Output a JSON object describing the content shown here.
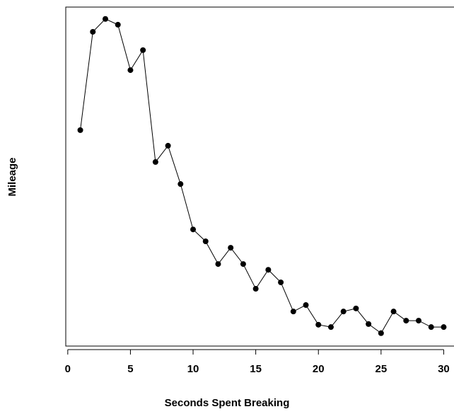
{
  "chart_data": {
    "type": "line",
    "x_label": "Seconds Spent Breaking",
    "y_label": "Mileage",
    "x": [
      1,
      2,
      3,
      4,
      5,
      6,
      7,
      8,
      9,
      10,
      11,
      12,
      13,
      14,
      15,
      16,
      17,
      18,
      19,
      20,
      21,
      22,
      23,
      24,
      25,
      26,
      27,
      28,
      29,
      30
    ],
    "series": [
      {
        "color": "#000000",
        "values": [
          63.7,
          92.7,
          96.5,
          94.8,
          81.4,
          87.3,
          54.3,
          59.1,
          47.8,
          34.4,
          30.9,
          24.2,
          29.0,
          24.2,
          16.9,
          22.5,
          18.8,
          10.2,
          12.1,
          6.3,
          5.6,
          10.2,
          11.1,
          6.5,
          3.8,
          10.2,
          7.5,
          7.5,
          5.6,
          5.6
        ]
      }
    ],
    "xlim": [
      -0.16,
      31.16
    ],
    "ylim": [
      0,
      100
    ],
    "xticks": [
      0,
      5,
      10,
      15,
      20,
      25,
      30
    ]
  }
}
